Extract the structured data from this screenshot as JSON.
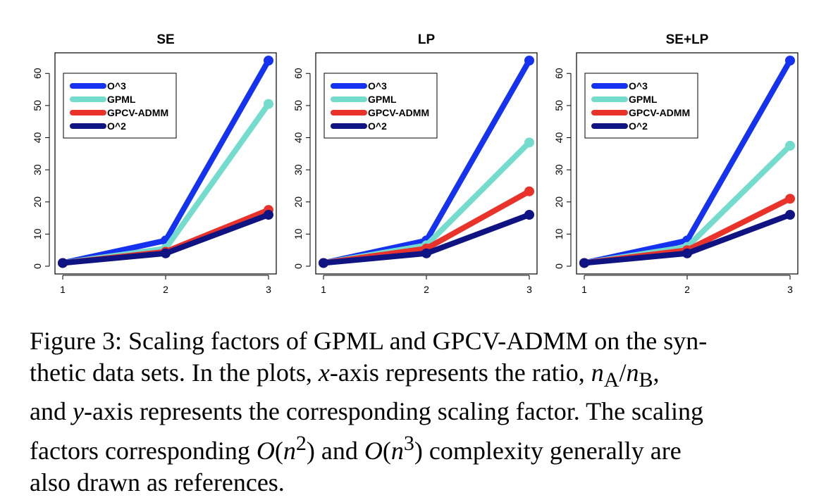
{
  "chart_data": [
    {
      "type": "line",
      "title": "SE",
      "x": [
        1,
        2,
        3
      ],
      "xlim": [
        1,
        3
      ],
      "ylim": [
        0,
        64
      ],
      "yticks": [
        0,
        10,
        20,
        30,
        40,
        50,
        60
      ],
      "xticks": [
        1,
        2,
        3
      ],
      "legend_position": "top-left",
      "grid": false,
      "series": [
        {
          "name": "O^3",
          "color": "#1432f0",
          "values": [
            1,
            8,
            64
          ]
        },
        {
          "name": "GPML",
          "color": "#73dccd",
          "values": [
            1,
            5.5,
            50.5
          ]
        },
        {
          "name": "GPCV-ADMM",
          "color": "#e8322a",
          "values": [
            1,
            4.5,
            17.5
          ]
        },
        {
          "name": "O^2",
          "color": "#0f1482",
          "values": [
            1,
            4,
            16
          ]
        }
      ]
    },
    {
      "type": "line",
      "title": "LP",
      "x": [
        1,
        2,
        3
      ],
      "xlim": [
        1,
        3
      ],
      "ylim": [
        0,
        64
      ],
      "yticks": [
        0,
        10,
        20,
        30,
        40,
        50,
        60
      ],
      "xticks": [
        1,
        2,
        3
      ],
      "legend_position": "top-left",
      "grid": false,
      "series": [
        {
          "name": "O^3",
          "color": "#1432f0",
          "values": [
            1,
            8,
            64
          ]
        },
        {
          "name": "GPML",
          "color": "#73dccd",
          "values": [
            1,
            6.5,
            38.5
          ]
        },
        {
          "name": "GPCV-ADMM",
          "color": "#e8322a",
          "values": [
            1,
            5.5,
            23.3
          ]
        },
        {
          "name": "O^2",
          "color": "#0f1482",
          "values": [
            1,
            4,
            16
          ]
        }
      ]
    },
    {
      "type": "line",
      "title": "SE+LP",
      "x": [
        1,
        2,
        3
      ],
      "xlim": [
        1,
        3
      ],
      "ylim": [
        0,
        64
      ],
      "yticks": [
        0,
        10,
        20,
        30,
        40,
        50,
        60
      ],
      "xticks": [
        1,
        2,
        3
      ],
      "legend_position": "top-left",
      "grid": false,
      "series": [
        {
          "name": "O^3",
          "color": "#1432f0",
          "values": [
            1,
            8,
            64
          ]
        },
        {
          "name": "GPML",
          "color": "#73dccd",
          "values": [
            1,
            6,
            37.5
          ]
        },
        {
          "name": "GPCV-ADMM",
          "color": "#e8322a",
          "values": [
            1,
            5,
            21
          ]
        },
        {
          "name": "O^2",
          "color": "#0f1482",
          "values": [
            1,
            4,
            16
          ]
        }
      ]
    }
  ],
  "caption": {
    "lines": [
      "Figure 3: Scaling factors of GPML and GPCV-ADMM on the syn-",
      "thetic data sets.  In the plots, <i>x</i>-axis represents the ratio, <i>n</i><sub>A</sub>/<i>n</i><sub>B</sub>,",
      "and <i>y</i>-axis represents the corresponding scaling factor. The scaling",
      "factors corresponding <i>O</i>(<i>n</i><sup>2</sup>) and <i>O</i>(<i>n</i><sup>3</sup>) complexity generally are",
      "also drawn as references."
    ]
  }
}
